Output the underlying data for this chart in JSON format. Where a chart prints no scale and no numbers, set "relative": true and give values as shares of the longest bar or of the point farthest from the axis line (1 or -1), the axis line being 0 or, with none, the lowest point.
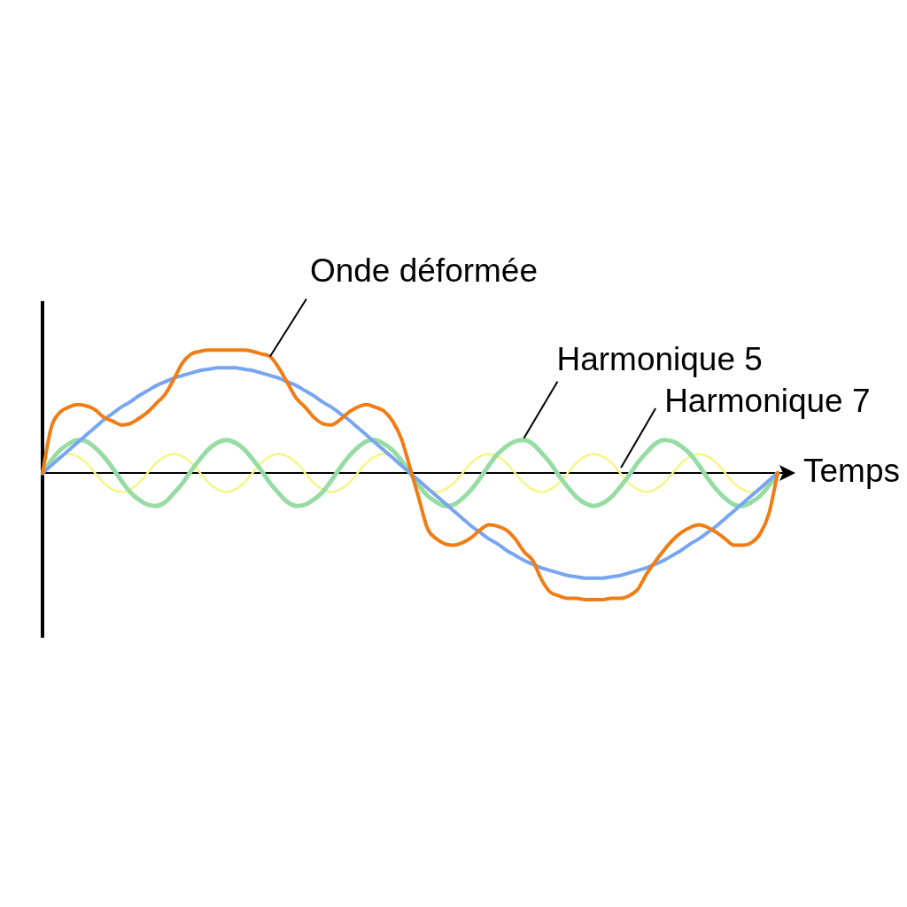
{
  "chart_data": {
    "type": "line",
    "xlabel": "Temps",
    "relative": true,
    "categories": [
      null,
      null,
      null,
      null,
      null,
      null,
      null,
      null,
      null,
      null,
      null,
      null,
      null,
      null,
      null,
      null,
      null,
      null,
      null,
      null,
      null,
      null,
      null,
      null,
      null,
      null,
      null,
      null,
      null,
      null,
      null,
      null,
      null,
      null,
      null,
      null,
      null,
      null,
      null,
      null,
      null,
      null,
      null,
      null,
      null,
      null,
      null,
      null,
      null,
      null,
      null,
      null,
      null,
      null,
      null,
      null,
      null,
      null,
      null,
      null,
      null,
      null,
      null,
      null,
      null,
      null,
      null,
      null,
      null,
      null,
      null,
      null,
      null,
      null,
      null,
      null,
      null,
      null,
      null,
      null,
      null,
      null,
      null,
      null,
      null
    ],
    "series": [
      {
        "name": "Onde déformée",
        "color": "#f07d14",
        "values": [
          0,
          0.36,
          0.48,
          0.52,
          0.54,
          0.53,
          0.5,
          0.44,
          0.41,
          0.38,
          0.39,
          0.43,
          0.48,
          0.55,
          0.62,
          0.74,
          0.87,
          0.94,
          0.96,
          0.97,
          0.97,
          0.97,
          0.97,
          0.97,
          0.96,
          0.94,
          0.92,
          0.83,
          0.71,
          0.59,
          0.52,
          0.44,
          0.39,
          0.38,
          0.42,
          0.48,
          0.52,
          0.54,
          0.52,
          0.49,
          0.41,
          0.27,
          0.04,
          -0.2,
          -0.44,
          -0.52,
          -0.56,
          -0.57,
          -0.55,
          -0.51,
          -0.45,
          -0.41,
          -0.42,
          -0.45,
          -0.52,
          -0.62,
          -0.69,
          -0.84,
          -0.94,
          -0.97,
          -0.99,
          -0.99,
          -1,
          -1,
          -1,
          -0.99,
          -0.99,
          -0.97,
          -0.92,
          -0.8,
          -0.7,
          -0.61,
          -0.53,
          -0.47,
          -0.43,
          -0.41,
          -0.43,
          -0.47,
          -0.52,
          -0.57,
          -0.57,
          -0.55,
          -0.48,
          -0.32,
          0
        ]
      },
      {
        "color": "#78a5f2",
        "values": [
          0,
          0.06,
          0.12,
          0.18,
          0.24,
          0.3,
          0.36,
          0.42,
          0.47,
          0.52,
          0.56,
          0.61,
          0.65,
          0.69,
          0.72,
          0.75,
          0.77,
          0.79,
          0.81,
          0.82,
          0.83,
          0.83,
          0.83,
          0.82,
          0.81,
          0.79,
          0.77,
          0.75,
          0.72,
          0.69,
          0.65,
          0.61,
          0.56,
          0.52,
          0.47,
          0.42,
          0.36,
          0.3,
          0.24,
          0.18,
          0.12,
          0.06,
          0,
          -0.06,
          -0.12,
          -0.18,
          -0.24,
          -0.3,
          -0.36,
          -0.42,
          -0.47,
          -0.52,
          -0.56,
          -0.61,
          -0.65,
          -0.69,
          -0.72,
          -0.75,
          -0.77,
          -0.79,
          -0.81,
          -0.82,
          -0.83,
          -0.83,
          -0.83,
          -0.82,
          -0.81,
          -0.79,
          -0.77,
          -0.75,
          -0.72,
          -0.69,
          -0.65,
          -0.61,
          -0.56,
          -0.52,
          -0.47,
          -0.42,
          -0.36,
          -0.3,
          -0.24,
          -0.18,
          -0.12,
          -0.06,
          0
        ]
      },
      {
        "name": "Harmonique 5",
        "color": "#96dca4",
        "values": [
          0,
          0.1,
          0.18,
          0.23,
          0.26,
          0.25,
          0.2,
          0.13,
          0.04,
          -0.06,
          -0.15,
          -0.21,
          -0.25,
          -0.26,
          -0.23,
          -0.16,
          -0.08,
          0.02,
          0.11,
          0.19,
          0.24,
          0.26,
          0.24,
          0.19,
          0.11,
          0.02,
          -0.08,
          -0.16,
          -0.23,
          -0.26,
          -0.25,
          -0.21,
          -0.15,
          -0.06,
          0.04,
          0.13,
          0.2,
          0.25,
          0.26,
          0.23,
          0.18,
          0.1,
          0,
          -0.1,
          -0.18,
          -0.23,
          -0.26,
          -0.25,
          -0.2,
          -0.13,
          -0.04,
          0.06,
          0.15,
          0.21,
          0.25,
          0.26,
          0.23,
          0.16,
          0.08,
          -0.02,
          -0.11,
          -0.19,
          -0.24,
          -0.26,
          -0.24,
          -0.19,
          -0.11,
          -0.02,
          0.08,
          0.16,
          0.23,
          0.26,
          0.25,
          0.21,
          0.15,
          0.06,
          -0.04,
          -0.13,
          -0.2,
          -0.25,
          -0.26,
          -0.23,
          -0.18,
          -0.1,
          0
        ]
      },
      {
        "name": "Harmonique 7",
        "color": "#f6f584",
        "values": [
          0,
          0.08,
          0.13,
          0.15,
          0.13,
          0.08,
          0,
          -0.08,
          -0.13,
          -0.15,
          -0.13,
          -0.08,
          0,
          0.08,
          0.13,
          0.15,
          0.13,
          0.08,
          0,
          -0.08,
          -0.13,
          -0.15,
          -0.13,
          -0.08,
          0,
          0.08,
          0.13,
          0.15,
          0.13,
          0.08,
          0,
          -0.08,
          -0.13,
          -0.15,
          -0.13,
          -0.08,
          0,
          0.08,
          0.13,
          0.15,
          0.13,
          0.08,
          0,
          -0.08,
          -0.13,
          -0.15,
          -0.13,
          -0.08,
          0,
          0.08,
          0.13,
          0.15,
          0.13,
          0.08,
          0,
          -0.08,
          -0.13,
          -0.15,
          -0.13,
          -0.08,
          0,
          0.08,
          0.13,
          0.15,
          0.13,
          0.08,
          0,
          -0.08,
          -0.13,
          -0.15,
          -0.13,
          -0.08,
          0,
          0.08,
          0.13,
          0.15,
          0.13,
          0.08,
          0,
          -0.08,
          -0.13,
          -0.15,
          -0.13,
          -0.08,
          0
        ]
      }
    ]
  }
}
